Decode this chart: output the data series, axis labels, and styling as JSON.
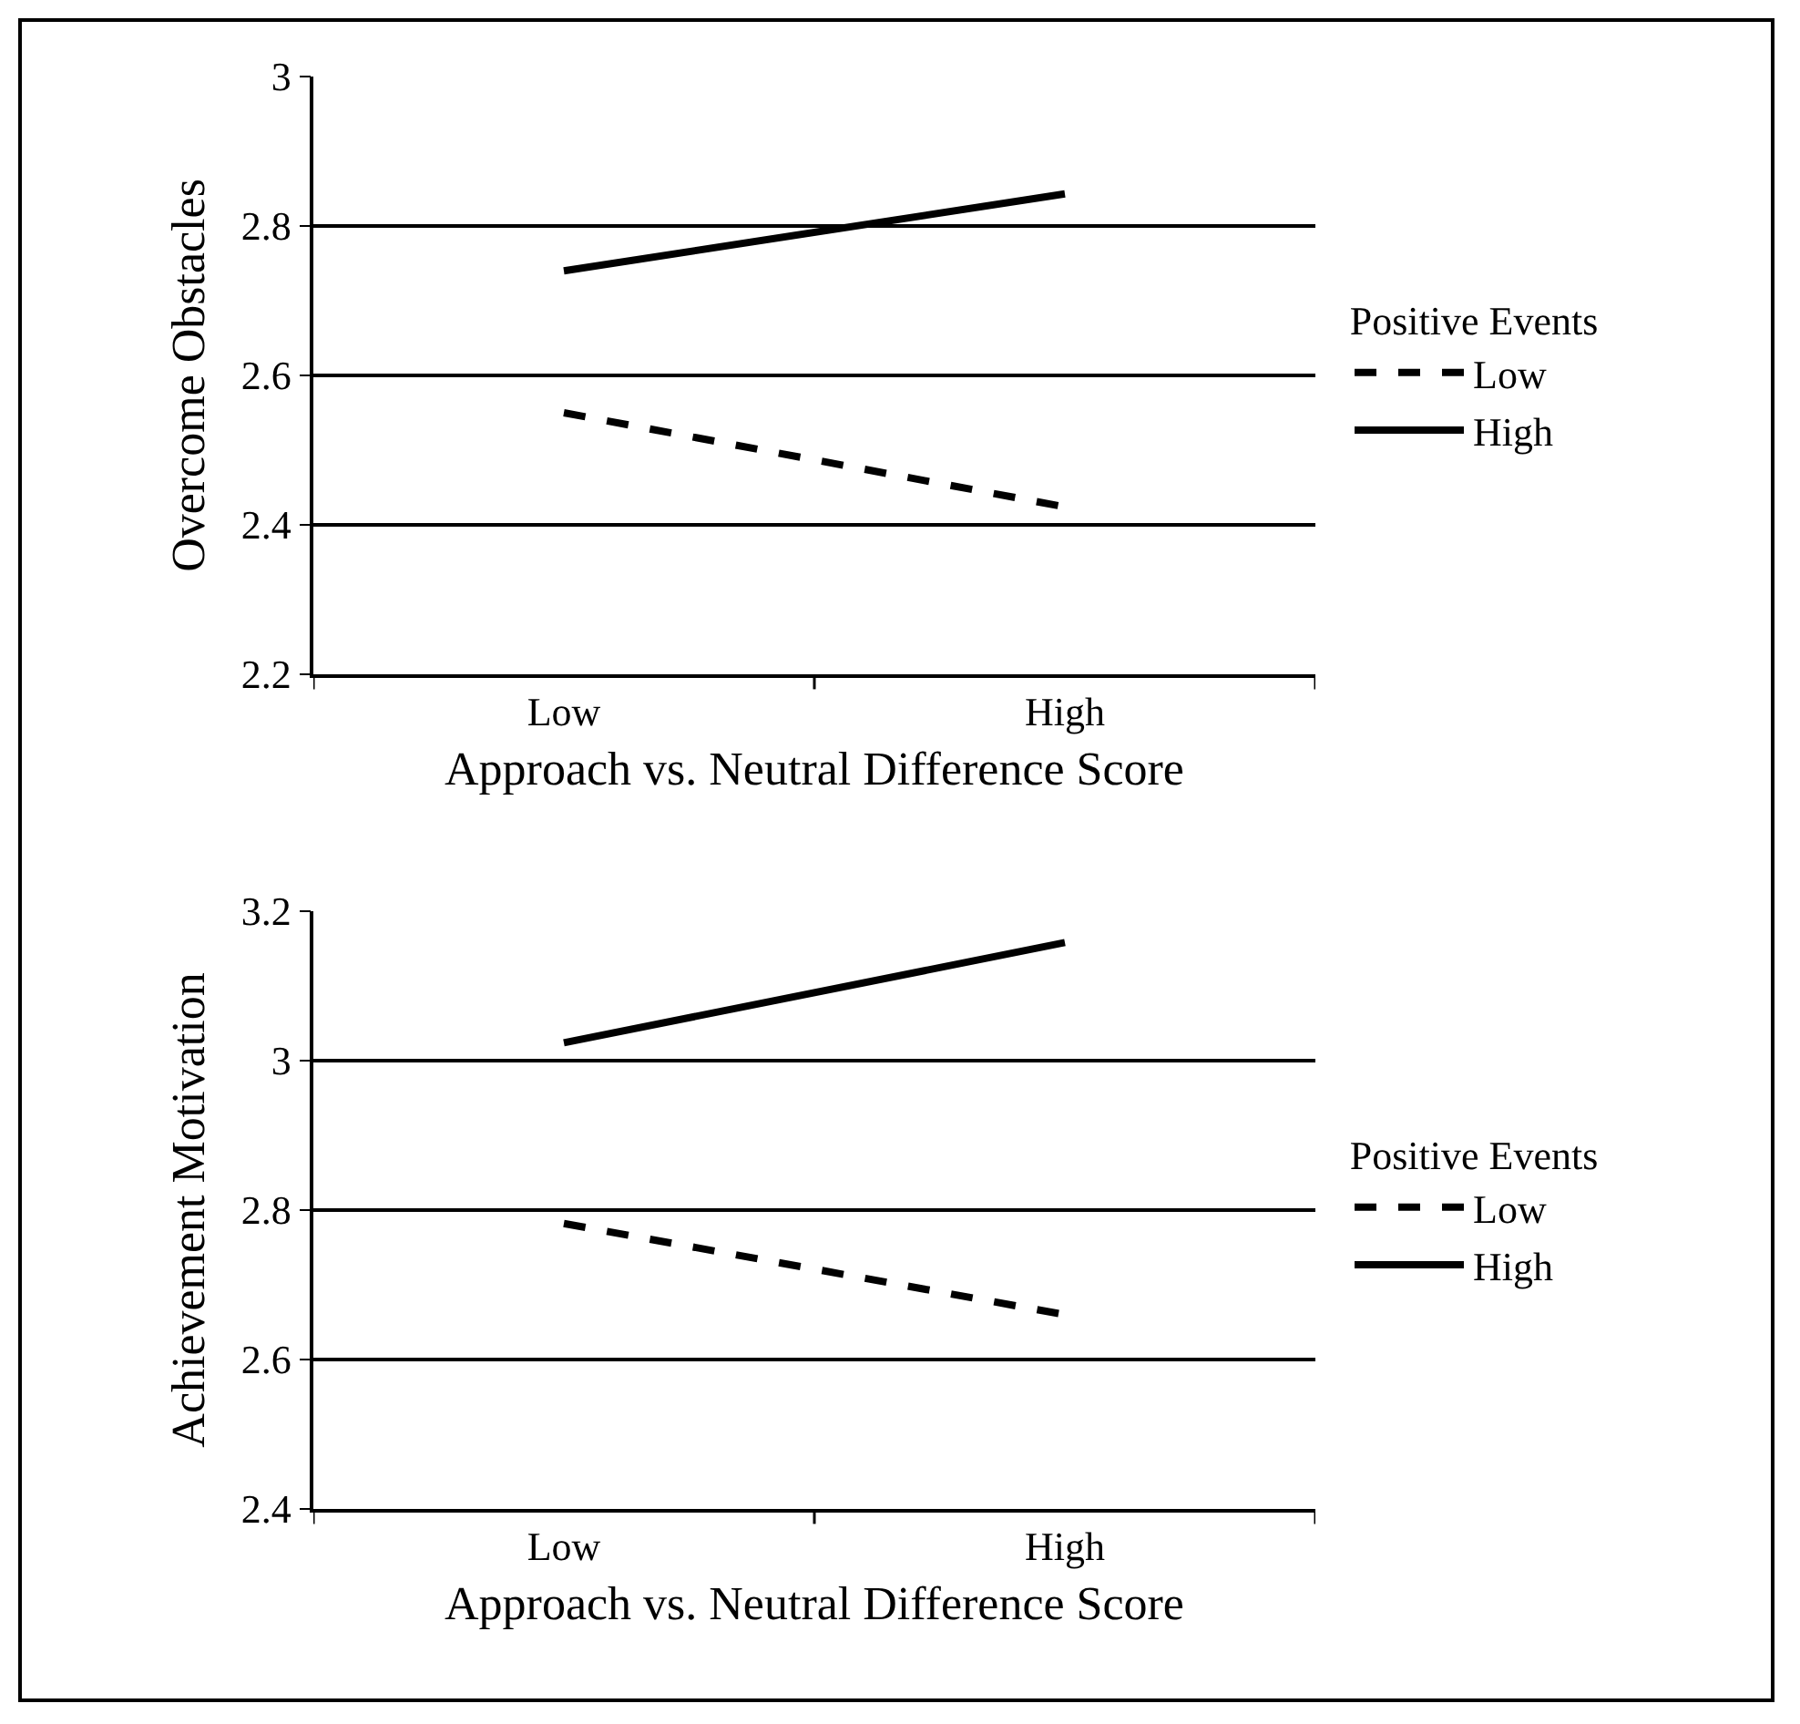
{
  "chart_data": [
    {
      "type": "line",
      "categories": [
        "Low",
        "High"
      ],
      "xlabel": "Approach vs. Neutral Difference Score",
      "ylabel": "Overcome Obstacles",
      "legend_title": "Positive Events",
      "ylim": [
        2.2,
        3
      ],
      "yticks": [
        2.2,
        2.4,
        2.6,
        2.8,
        3
      ],
      "grid": "y",
      "legend": "right",
      "marker": "none",
      "series": [
        {
          "name": "Low",
          "color": "#000000",
          "line_style": "dashed",
          "values": [
            2.55,
            2.424
          ]
        },
        {
          "name": "High",
          "color": "#000000",
          "line_style": "solid",
          "values": [
            2.74,
            2.843
          ]
        }
      ]
    },
    {
      "type": "line",
      "categories": [
        "Low",
        "High"
      ],
      "xlabel": "Approach vs. Neutral Difference Score",
      "ylabel": "Achievement Motivation",
      "legend_title": "Positive Events",
      "ylim": [
        2.4,
        3.2
      ],
      "yticks": [
        2.4,
        2.6,
        2.8,
        3,
        3.2
      ],
      "grid": "y",
      "legend": "right",
      "marker": "none",
      "series": [
        {
          "name": "Low",
          "color": "#000000",
          "line_style": "dashed",
          "values": [
            2.782,
            2.66
          ]
        },
        {
          "name": "High",
          "color": "#000000",
          "line_style": "solid",
          "values": [
            3.024,
            3.158
          ]
        }
      ]
    }
  ]
}
